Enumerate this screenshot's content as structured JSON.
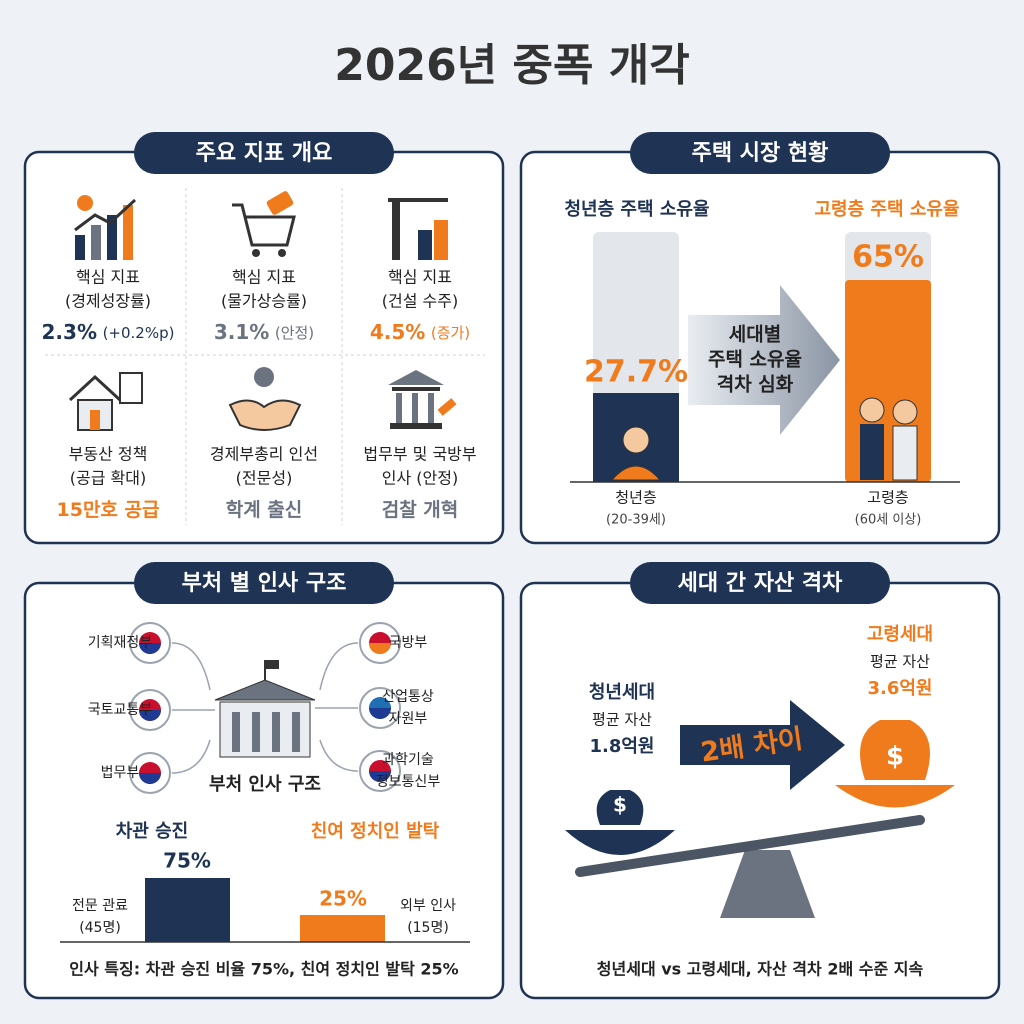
{
  "title": "2026년 중폭 개각",
  "indicators": {
    "title": "주요 지표 개요",
    "items": [
      {
        "lines": [
          "핵심 지표",
          "(경제성장률)"
        ],
        "value": "2.3%",
        "note": "(+0.2%p)",
        "color": "#1f3354"
      },
      {
        "lines": [
          "핵심 지표",
          "(물가상승률)"
        ],
        "value": "3.1%",
        "note": "(안정)",
        "color": "#6b7280"
      },
      {
        "lines": [
          "핵심 지표",
          "(건설 수주)"
        ],
        "value": "4.5%",
        "note": "(증가)",
        "color": "#f07b1d"
      },
      {
        "lines": [
          "부동산 정책",
          "(공급 확대)"
        ],
        "value": "15만호 공급",
        "color": "#f07b1d"
      },
      {
        "lines": [
          "경제부총리 인선",
          "(전문성)"
        ],
        "value": "학계 출신",
        "color": "#6b7280"
      },
      {
        "lines": [
          "법무부 및 국방부",
          "인사 (안정)"
        ],
        "value": "검찰 개혁",
        "color": "#6b7280"
      }
    ]
  },
  "housing": {
    "title": "주택 시장 현황",
    "young": {
      "heading": "청년층 주택 소유율",
      "value": "27.7%",
      "label": "청년층",
      "sub": "(20-39세)"
    },
    "old": {
      "heading": "고령층 주택 소유율",
      "value": "65%",
      "label": "고령층",
      "sub": "(60세 이상)"
    },
    "arrow": [
      "세대별",
      "주택 소유율",
      "격차 심화"
    ]
  },
  "ministries": {
    "title": "부처 별 인사 구조",
    "center": "부처 인사 구조",
    "left": [
      [
        "기획재정부"
      ],
      [
        "국토교통부"
      ],
      [
        "법무부"
      ]
    ],
    "right": [
      [
        "국방부"
      ],
      [
        "산업통상",
        "자원부"
      ],
      [
        "과학기술",
        "정보통신부"
      ]
    ],
    "bars": {
      "left": {
        "heading": "차관 승진",
        "value": "75%",
        "label": [
          "전문 관료",
          "(45명)"
        ]
      },
      "right": {
        "heading": "친여 정치인 발탁",
        "value": "25%",
        "label": [
          "외부 인사",
          "(15명)"
        ]
      }
    },
    "footer": "인사 특징: 차관 승진 비율 75%, 친여 정치인 발탁 25%"
  },
  "assets": {
    "title": "세대 간 자산 격차",
    "currency": "$",
    "young": [
      "청년세대",
      "평균 자산",
      "1.8억원"
    ],
    "old": [
      "고령세대",
      "평균 자산",
      "3.6억원"
    ],
    "arrow": "2배 차이",
    "footer": "청년세대 vs 고령세대, 자산 격차 2배 수준 지속"
  }
}
